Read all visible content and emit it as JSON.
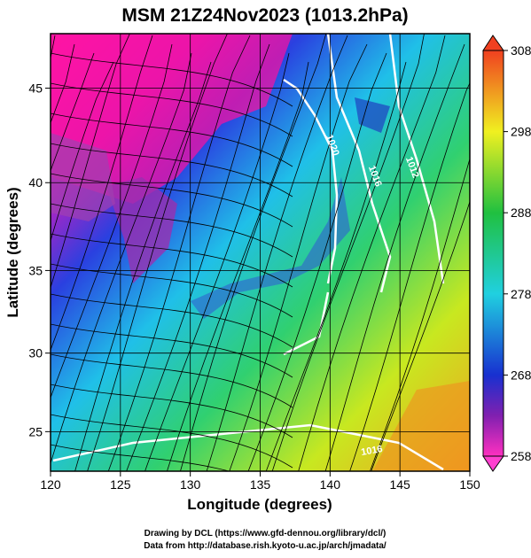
{
  "title": "MSM 21Z24Nov2023 (1013.2hPa)",
  "projection": "mercator",
  "x_axis": {
    "label": "Longitude (degrees)",
    "lim": [
      120,
      150
    ],
    "ticks": [
      120,
      125,
      130,
      135,
      140,
      145,
      150
    ]
  },
  "y_axis": {
    "label": "Latitude  (degrees)",
    "lim": [
      22.4,
      47.7
    ],
    "ticks": [
      25,
      30,
      35,
      40,
      45
    ]
  },
  "colorbar": {
    "lim": [
      258,
      308
    ],
    "ticks": [
      258,
      268,
      278,
      288,
      298,
      308
    ]
  },
  "contour_labels": [
    "1020",
    "1016",
    "1012",
    "1016"
  ],
  "credits": [
    "Drawing by DCL (https://www.gfd-dennou.org/library/dcl/)",
    "Data from http://database.rish.kyoto-u.ac.jp/arch/jmadata/"
  ]
}
